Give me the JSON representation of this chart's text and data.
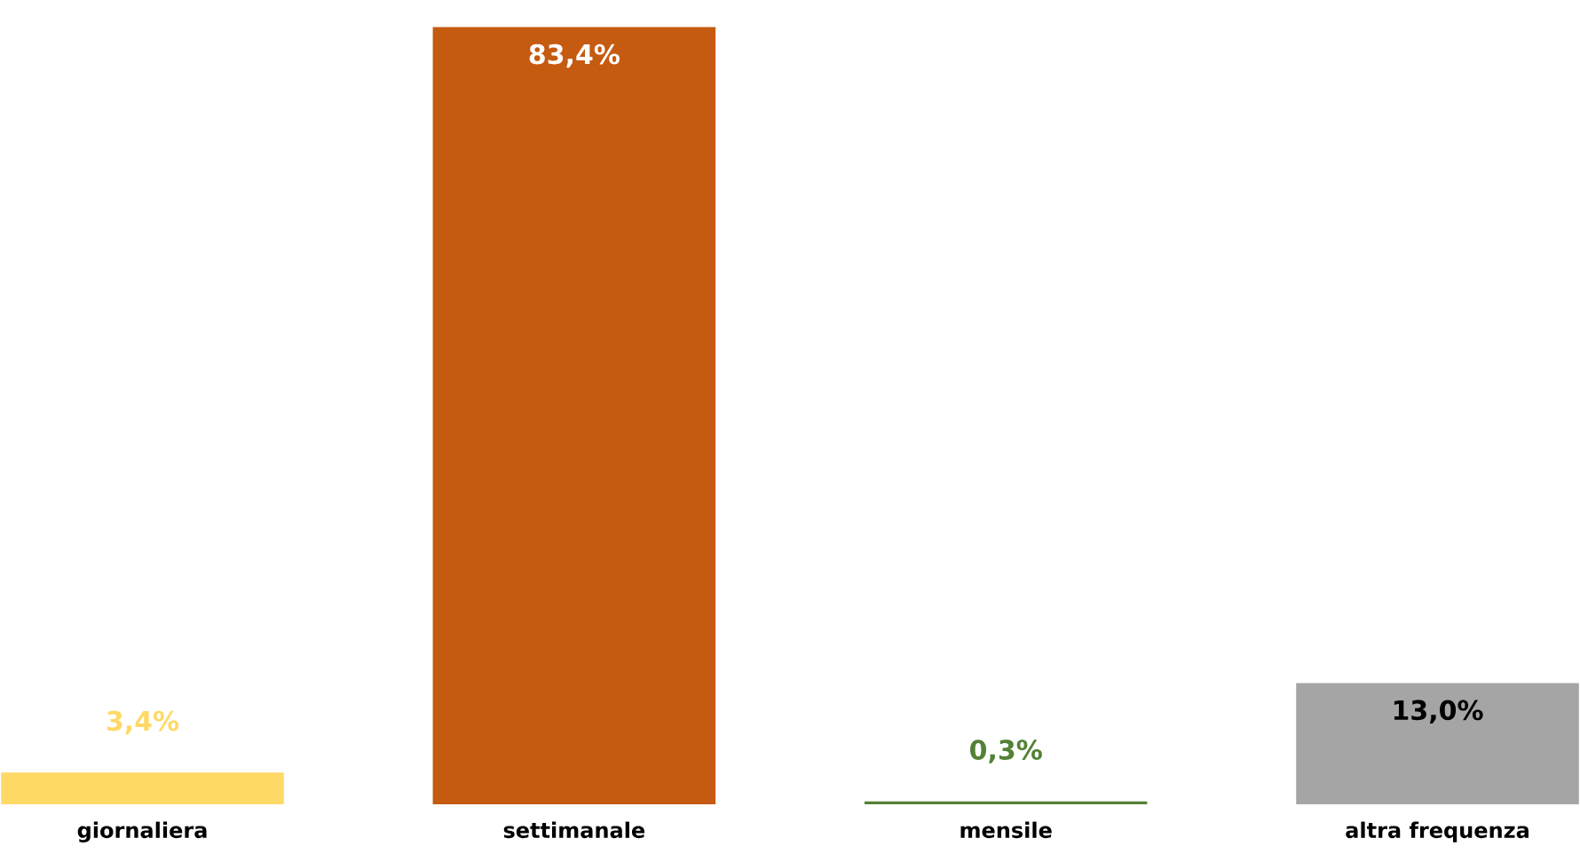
{
  "chart_data": {
    "type": "bar",
    "categories": [
      "giornaliera",
      "settimanale",
      "mensile",
      "altra frequenza"
    ],
    "values": [
      3.4,
      83.4,
      0.3,
      13.0
    ],
    "colors": [
      "#ffd966",
      "#c55a11",
      "#538135",
      "#a5a5a5"
    ],
    "value_labels": [
      "3,4%",
      "83,4%",
      "0,3%",
      "13,0%"
    ]
  }
}
